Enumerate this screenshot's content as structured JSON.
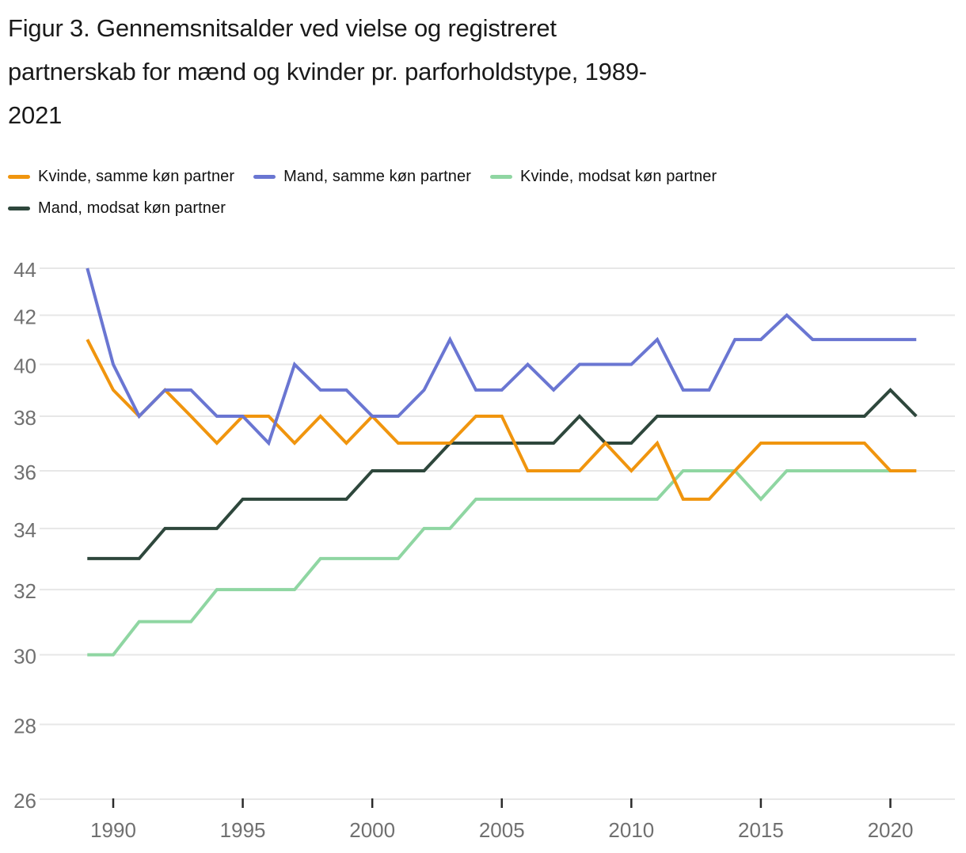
{
  "figure": {
    "title_lines": [
      "Figur 3. Gennemsnitsalder ved vielse og registreret",
      "partnerskab for mænd og kvinder pr. parforholdstype, 1989-",
      "2021"
    ]
  },
  "colors": {
    "grid": "#e7e7e7",
    "axis_tick": "#2b2b2b",
    "tick_label": "#707070",
    "title_text": "#1a1a1a",
    "legend_text": "#121212",
    "background": "#ffffff"
  },
  "chart_data": {
    "type": "line",
    "title": "Figur 3. Gennemsnitsalder ved vielse og registreret partnerskab for mænd og kvinder pr. parforholdstype, 1989-2021",
    "xlabel": "",
    "ylabel": "",
    "y_scale": "log",
    "ylim": [
      26,
      44
    ],
    "grid": "horizontal",
    "legend_position": "top",
    "y_ticks": [
      44,
      42,
      40,
      38,
      36,
      34,
      32,
      30,
      28,
      26
    ],
    "x_ticks": [
      1990,
      1995,
      2000,
      2005,
      2010,
      2015,
      2020
    ],
    "x": [
      1989,
      1990,
      1991,
      1992,
      1993,
      1994,
      1995,
      1996,
      1997,
      1998,
      1999,
      2000,
      2001,
      2002,
      2003,
      2004,
      2005,
      2006,
      2007,
      2008,
      2009,
      2010,
      2011,
      2012,
      2013,
      2014,
      2015,
      2016,
      2017,
      2018,
      2019,
      2020,
      2021
    ],
    "series": [
      {
        "name": "Kvinde, samme køn partner",
        "color": "#f0950e",
        "values": [
          41,
          39,
          38,
          39,
          38,
          37,
          38,
          38,
          37,
          38,
          37,
          38,
          37,
          37,
          37,
          38,
          38,
          36,
          36,
          36,
          37,
          36,
          37,
          35,
          35,
          36,
          37,
          37,
          37,
          37,
          37,
          36,
          36
        ]
      },
      {
        "name": "Mand, samme køn partner",
        "color": "#6a76d2",
        "values": [
          44,
          40,
          38,
          39,
          39,
          38,
          38,
          37,
          40,
          39,
          39,
          38,
          38,
          39,
          41,
          39,
          39,
          40,
          39,
          40,
          40,
          40,
          41,
          39,
          39,
          41,
          41,
          42,
          41,
          41,
          41,
          41,
          41
        ]
      },
      {
        "name": "Kvinde, modsat køn partner",
        "color": "#8fd6a2",
        "values": [
          30,
          30,
          31,
          31,
          31,
          32,
          32,
          32,
          32,
          33,
          33,
          33,
          33,
          34,
          34,
          35,
          35,
          35,
          35,
          35,
          35,
          35,
          35,
          36,
          36,
          36,
          35,
          36,
          36,
          36,
          36,
          36,
          36
        ]
      },
      {
        "name": "Mand, modsat køn partner",
        "color": "#2e473c",
        "values": [
          33,
          33,
          33,
          34,
          34,
          34,
          35,
          35,
          35,
          35,
          35,
          36,
          36,
          36,
          37,
          37,
          37,
          37,
          37,
          38,
          37,
          37,
          38,
          38,
          38,
          38,
          38,
          38,
          38,
          38,
          38,
          39,
          38
        ]
      }
    ]
  }
}
